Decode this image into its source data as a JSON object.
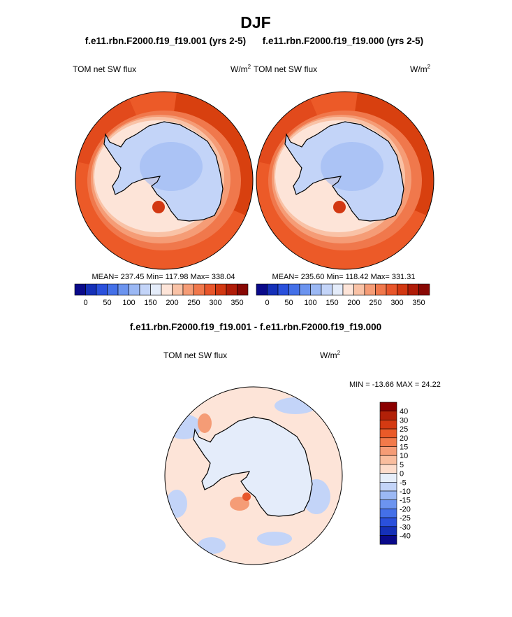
{
  "title": "DJF",
  "panels": [
    {
      "subtitle": "f.e11.rbn.F2000.f19_f19.001 (yrs 2-5)",
      "label": "TOM net SW flux",
      "units": {
        "base": "W/m",
        "sup": "2"
      },
      "stats": "MEAN= 237.45  Min= 117.98  Max= 338.04"
    },
    {
      "subtitle": "f.e11.rbn.F2000.f19_f19.000 (yrs 2-5)",
      "label": "TOM net SW flux",
      "units": {
        "base": "W/m",
        "sup": "2"
      },
      "stats": "MEAN= 235.60  Min= 118.42  Max= 331.31"
    }
  ],
  "colorbar": {
    "labels": [
      "0",
      "50",
      "100",
      "150",
      "200",
      "250",
      "300",
      "350"
    ]
  },
  "difference": {
    "title": "f.e11.rbn.F2000.f19_f19.001 - f.e11.rbn.F2000.f19_f19.000",
    "label": "TOM net SW flux",
    "units": {
      "base": "W/m",
      "sup": "2"
    },
    "stats": "MIN = -13.66 MAX =  24.22",
    "colorbar_labels": [
      "40",
      "30",
      "25",
      "20",
      "15",
      "10",
      "5",
      "0",
      "-5",
      "-10",
      "-15",
      "-20",
      "-25",
      "-30",
      "-40"
    ]
  }
}
